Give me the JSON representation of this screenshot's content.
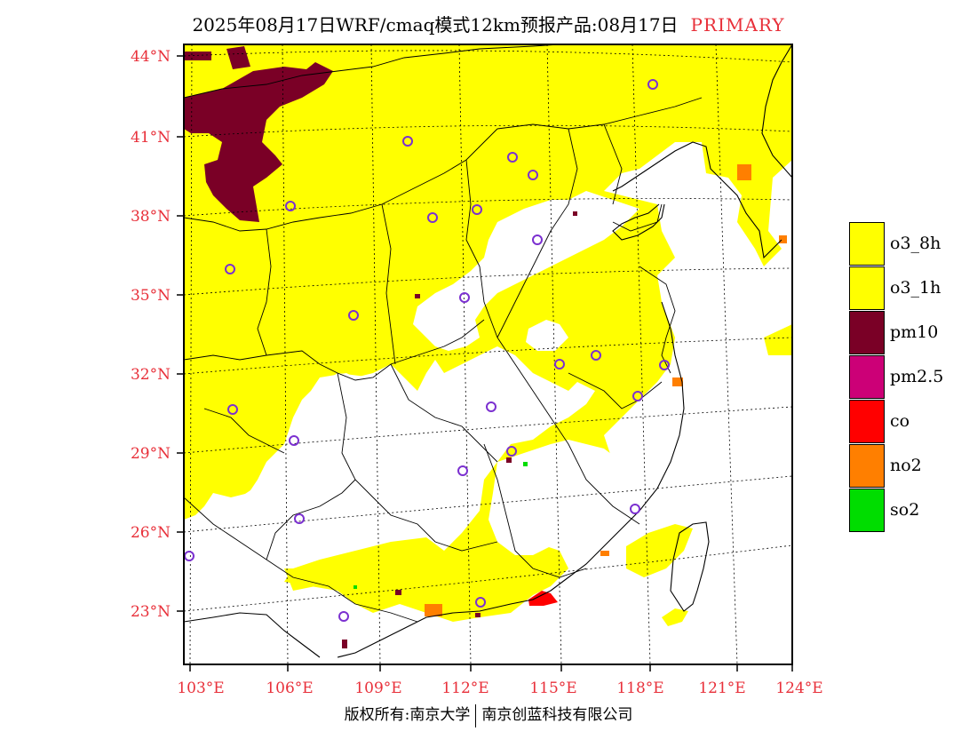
{
  "title": {
    "main": "2025年08月17日WRF/cmaq模式12km预报产品:08月17日",
    "tag": "PRIMARY"
  },
  "axes": {
    "lat_labels": [
      "44°N",
      "41°N",
      "38°N",
      "35°N",
      "32°N",
      "29°N",
      "26°N",
      "23°N"
    ],
    "lon_labels": [
      "103°E",
      "106°E",
      "109°E",
      "112°E",
      "115°E",
      "118°E",
      "121°E",
      "124°E"
    ]
  },
  "legend": [
    {
      "label": "o3_8h",
      "color": "#ffff00"
    },
    {
      "label": "o3_1h",
      "color": "#ffff00"
    },
    {
      "label": "pm10",
      "color": "#7a0026"
    },
    {
      "label": "pm2.5",
      "color": "#cc0077"
    },
    {
      "label": "co",
      "color": "#ff0000"
    },
    {
      "label": "no2",
      "color": "#ff7f00"
    },
    {
      "label": "so2",
      "color": "#00dd00"
    }
  ],
  "copyright": {
    "left": "版权所有:南京大学",
    "right": "南京创蓝科技有限公司"
  },
  "colors": {
    "o3": "#ffff00",
    "pm10": "#7a0026",
    "co": "#ff0000",
    "no2": "#ff7f00",
    "city_marker": "#7b30d0",
    "label_red": "#e8303a"
  }
}
